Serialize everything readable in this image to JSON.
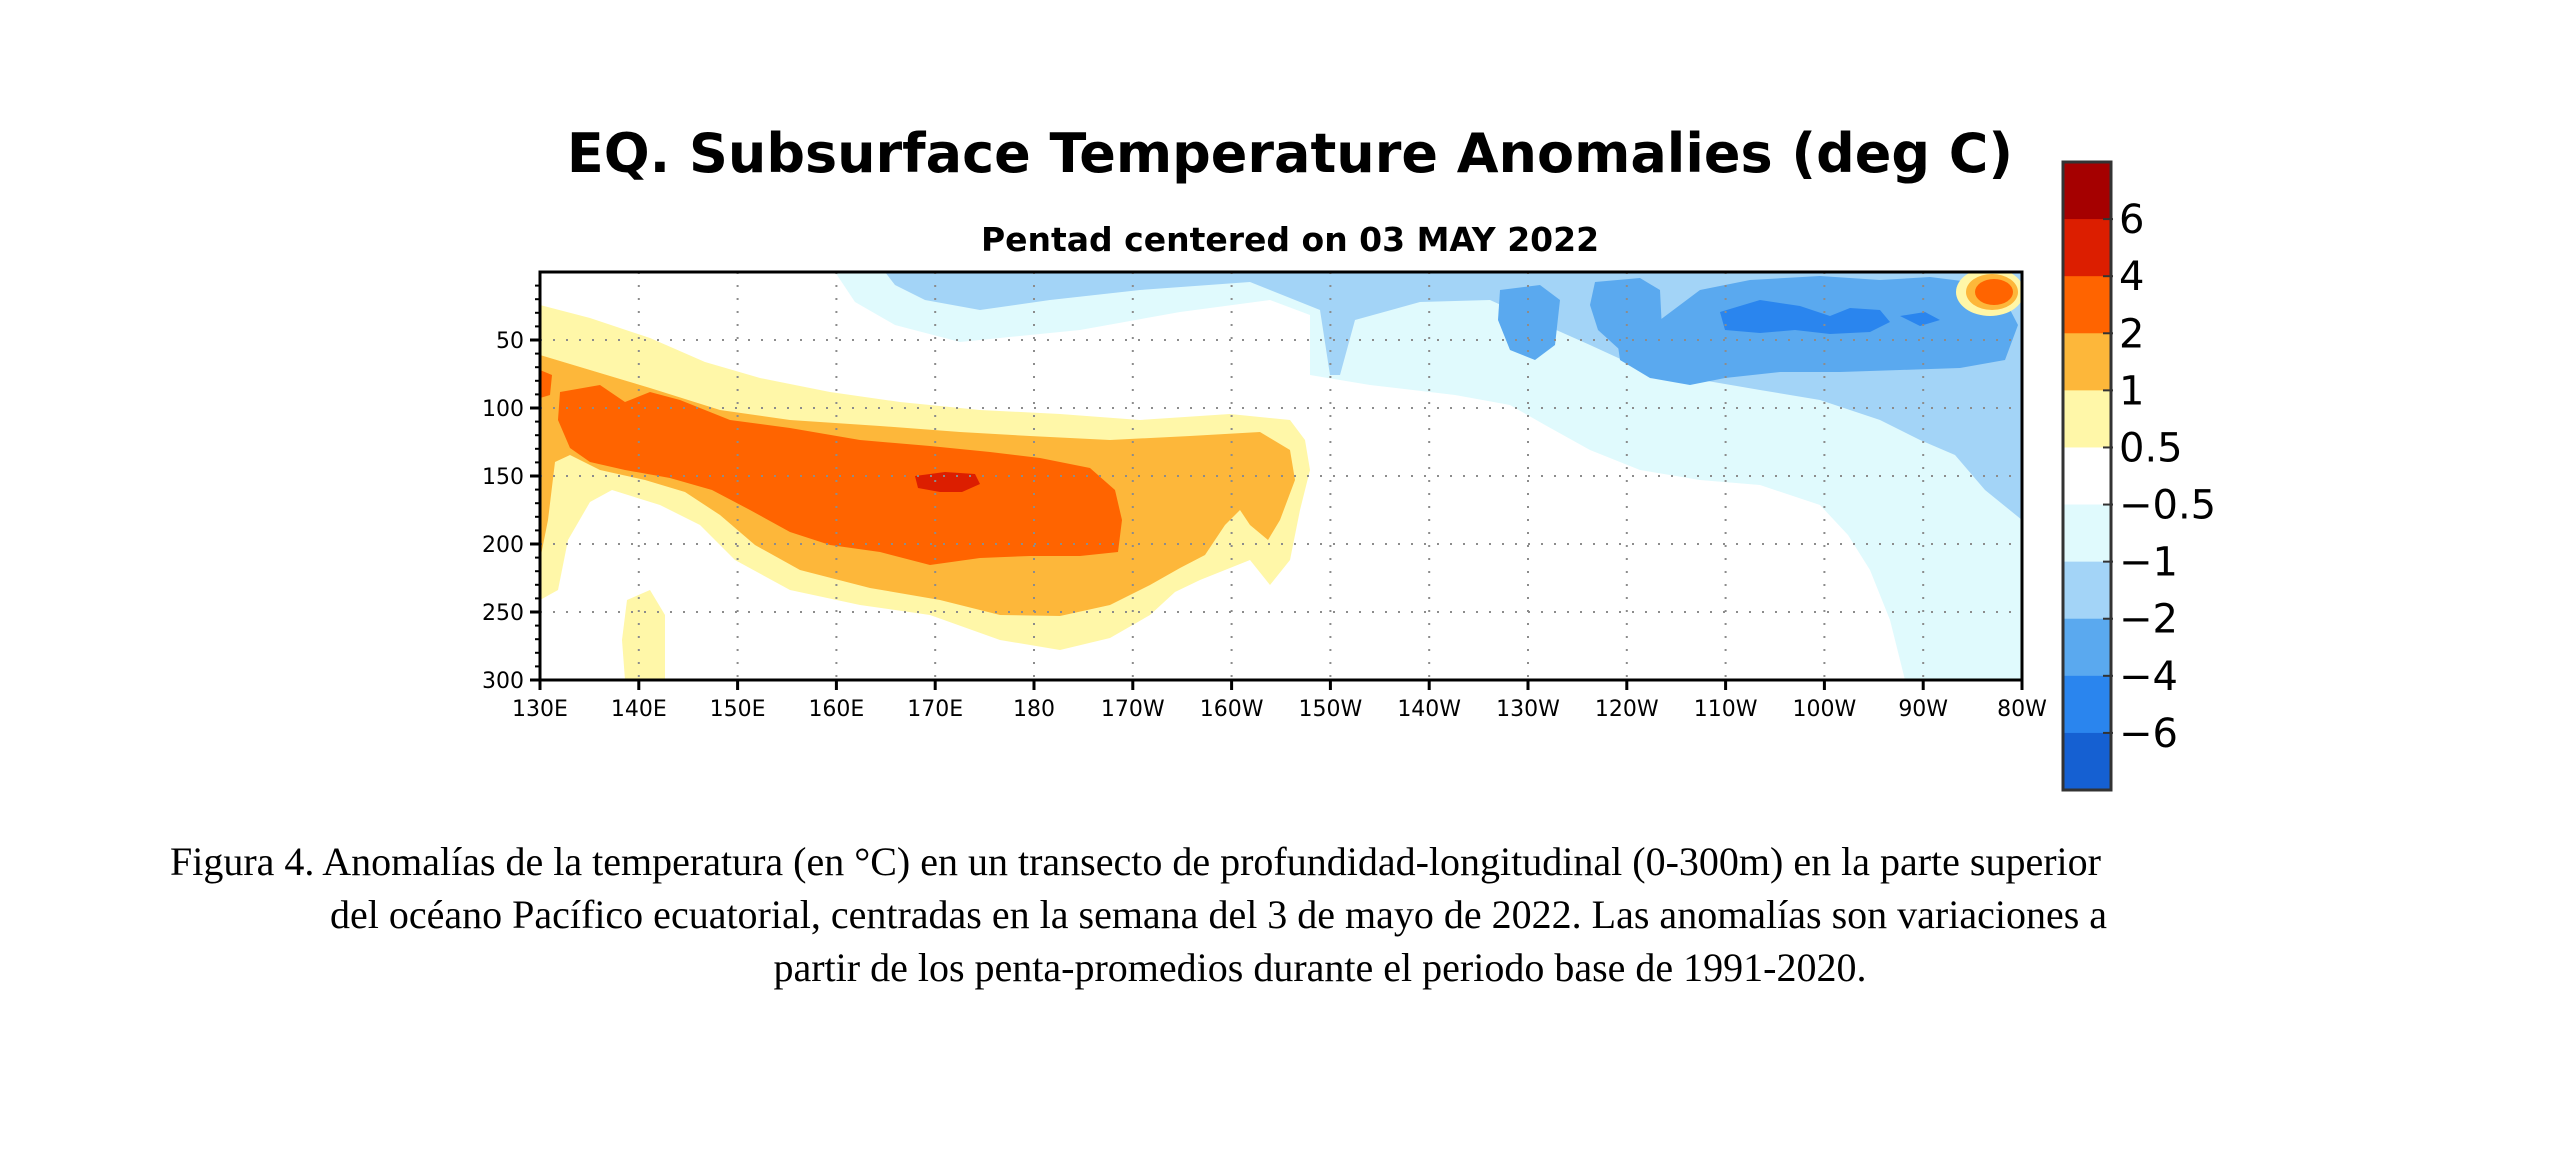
{
  "chart_data": {
    "type": "heatmap",
    "title": "EQ. Subsurface Temperature Anomalies (deg C)",
    "subtitle": "Pentad centered on 03 MAY 2022",
    "xlabel": "",
    "ylabel": "",
    "x_ticks": [
      "130E",
      "140E",
      "150E",
      "160E",
      "170E",
      "180",
      "170W",
      "160W",
      "150W",
      "140W",
      "130W",
      "120W",
      "110W",
      "100W",
      "90W",
      "80W"
    ],
    "y_ticks": [
      50,
      100,
      150,
      200,
      250,
      300
    ],
    "ylim": [
      300,
      0
    ],
    "grid": "dotted",
    "colorbar": {
      "placement": "right",
      "labels": [
        "6",
        "4",
        "2",
        "1",
        "0.5",
        "−0.5",
        "−1",
        "−2",
        "−4",
        "−6"
      ],
      "colors": [
        "#a50000",
        "#dc1e00",
        "#ff6400",
        "#fdb73a",
        "#fff7a8",
        "#ffffff",
        "#e0fafd",
        "#a3d4f7",
        "#5aa9ef",
        "#2a85ee",
        "#1560d2"
      ]
    },
    "regions": [
      {
        "level": 1,
        "note": "warm anomaly 130E-160W, 40-280 m"
      },
      {
        "level": 2,
        "note": "warm core 130E-175W, 90-215 m"
      },
      {
        "level": 4,
        "note": "max near 170E, 155 m"
      },
      {
        "level": -1,
        "note": "cool anomaly 150W-80W, 0-110 m"
      },
      {
        "level": -2,
        "note": "cool core 120W-95W, 25 m"
      },
      {
        "level": 4,
        "note": "warm spot near 82W, 15 m"
      }
    ]
  },
  "caption": {
    "line1": "Figura 4. Anomalías de la temperatura (en °C) en un transecto de profundidad-longitudinal (0-300m) en la parte superior",
    "line2": "del océano Pacífico ecuatorial, centradas en la semana del 3 de mayo de 2022. Las anomalías son variaciones a",
    "line3": "partir de los penta-promedios durante el periodo base de 1991-2020."
  }
}
